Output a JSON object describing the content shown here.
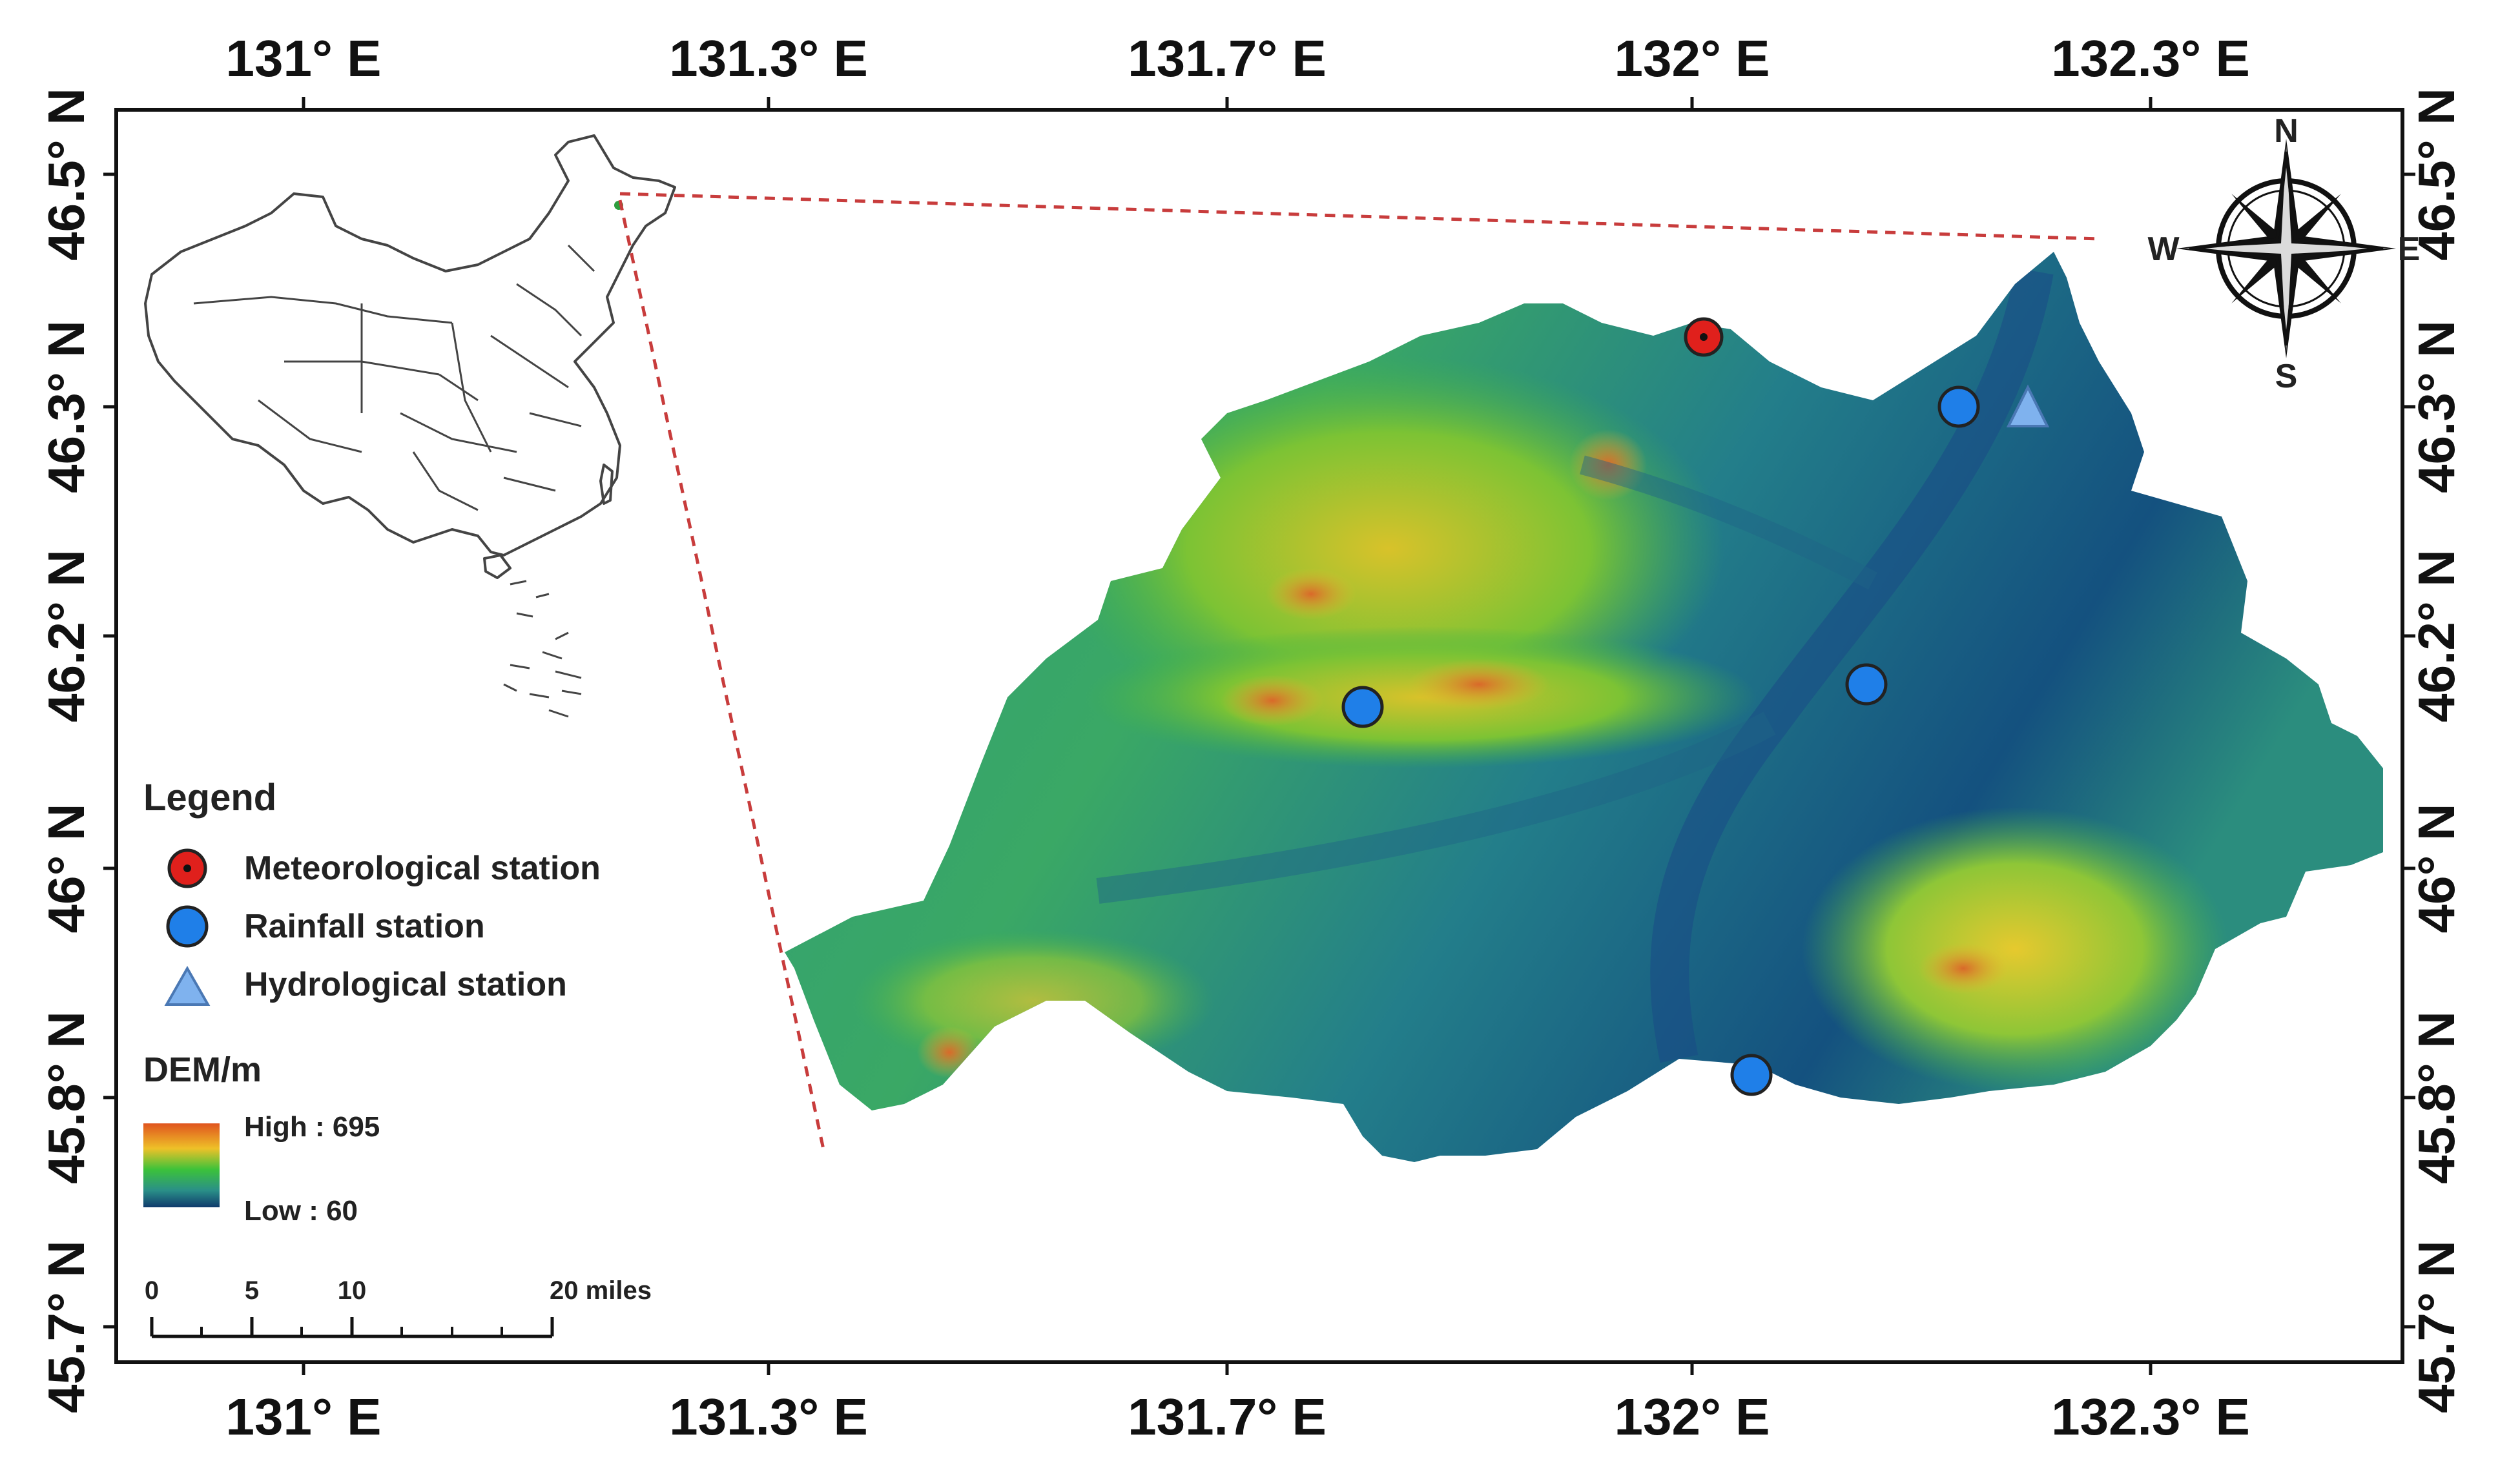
{
  "map": {
    "ticks": {
      "lon_labels": [
        "131° E",
        "131.3° E",
        "131.7° E",
        "132° E",
        "132.3° E"
      ],
      "lat_labels": [
        "46.5° N",
        "46.3° N",
        "46.2° N",
        "46° N",
        "45.8° N",
        "45.7° N"
      ]
    },
    "legend": {
      "title": "Legend",
      "items": [
        {
          "label": "Meteorological station",
          "symbol": "red-circle-icon",
          "color": "#e0201c"
        },
        {
          "label": "Rainfall station",
          "symbol": "blue-circle-icon",
          "color": "#1f7fe8"
        },
        {
          "label": "Hydrological station",
          "symbol": "blue-triangle-icon",
          "color": "#7fb2ee"
        }
      ],
      "dem_title": "DEM/m",
      "dem_high": "High : 695",
      "dem_low": "Low : 60",
      "dem_colors": [
        "#e0541e",
        "#eec128",
        "#3cc23a",
        "#2a8f88",
        "#0f3a6c"
      ]
    },
    "scale_bar": {
      "labels": [
        "0",
        "5",
        "10",
        "20 miles"
      ]
    },
    "compass": {
      "n": "N",
      "s": "S",
      "e": "E",
      "w": "W"
    },
    "stations": [
      {
        "type": "meteorological",
        "lon": 132.01,
        "lat": 46.36
      },
      {
        "type": "rainfall",
        "lon": 132.17,
        "lat": 46.3
      },
      {
        "type": "rainfall",
        "lon": 131.8,
        "lat": 46.14
      },
      {
        "type": "rainfall",
        "lon": 132.12,
        "lat": 46.16
      },
      {
        "type": "rainfall",
        "lon": 132.04,
        "lat": 45.82
      },
      {
        "type": "hydrological",
        "lon": 132.22,
        "lat": 46.3
      }
    ]
  }
}
